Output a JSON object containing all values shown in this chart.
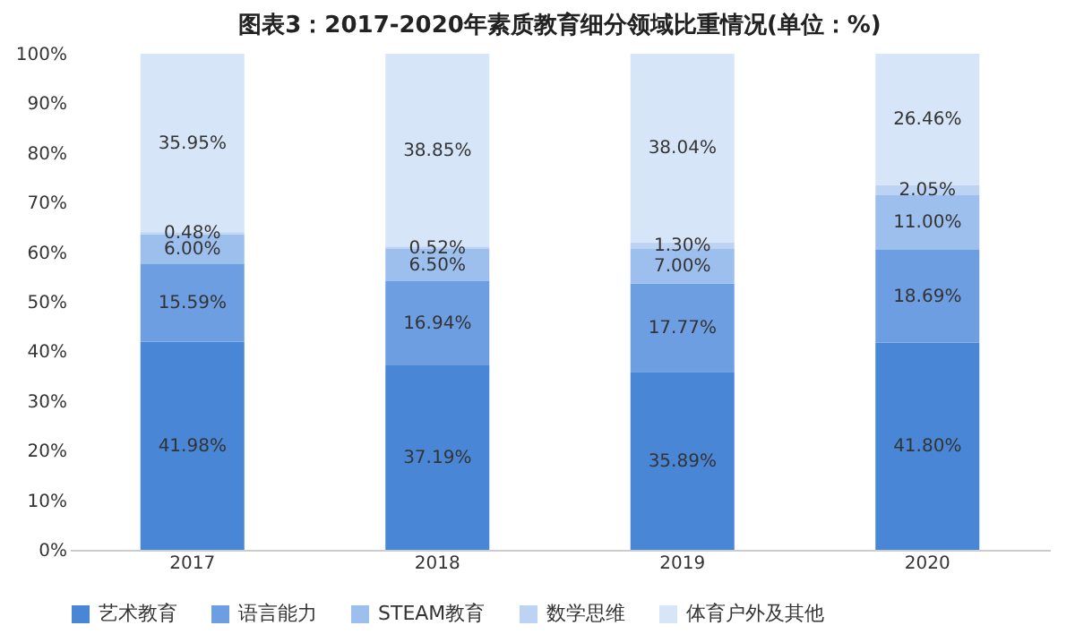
{
  "chart_data": {
    "type": "bar",
    "stacked": true,
    "title": "图表3：2017-2020年素质教育细分领域比重情况(单位：%)",
    "categories": [
      "2017",
      "2018",
      "2019",
      "2020"
    ],
    "series": [
      {
        "name": "艺术教育",
        "color": "#4a86d6",
        "values": [
          41.98,
          37.19,
          35.89,
          41.8
        ],
        "value_labels": [
          "41.98%",
          "37.19%",
          "35.89%",
          "41.80%"
        ]
      },
      {
        "name": "语言能力",
        "color": "#6d9ee2",
        "values": [
          15.59,
          16.94,
          17.77,
          18.69
        ],
        "value_labels": [
          "15.59%",
          "16.94%",
          "17.77%",
          "18.69%"
        ]
      },
      {
        "name": "STEAM教育",
        "color": "#9dbfee",
        "values": [
          6.0,
          6.5,
          7.0,
          11.0
        ],
        "value_labels": [
          "6.00%",
          "6.50%",
          "7.00%",
          "11.00%"
        ]
      },
      {
        "name": "数学思维",
        "color": "#bcd3f4",
        "values": [
          0.48,
          0.52,
          1.3,
          2.05
        ],
        "value_labels": [
          "0.48%",
          "0.52%",
          "1.30%",
          "2.05%"
        ]
      },
      {
        "name": "体育户外及其他",
        "color": "#d7e5f8",
        "values": [
          35.95,
          38.85,
          38.04,
          26.46
        ],
        "value_labels": [
          "35.95%",
          "38.85%",
          "38.04%",
          "26.46%"
        ]
      }
    ],
    "ylim": [
      0,
      100
    ],
    "yticks": [
      {
        "value": 0,
        "label": "0%"
      },
      {
        "value": 10,
        "label": "10%"
      },
      {
        "value": 20,
        "label": "20%"
      },
      {
        "value": 30,
        "label": "30%"
      },
      {
        "value": 40,
        "label": "40%"
      },
      {
        "value": 50,
        "label": "50%"
      },
      {
        "value": 60,
        "label": "60%"
      },
      {
        "value": 70,
        "label": "70%"
      },
      {
        "value": 80,
        "label": "80%"
      },
      {
        "value": 90,
        "label": "90%"
      },
      {
        "value": 100,
        "label": "100%"
      }
    ],
    "grid": false,
    "legend": "bottom"
  }
}
